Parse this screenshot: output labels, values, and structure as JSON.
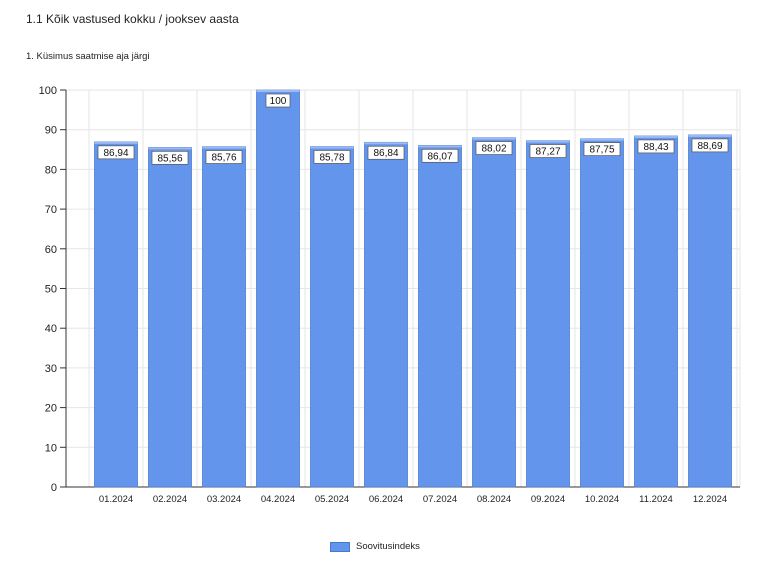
{
  "header": {
    "title": "1.1 Kõik vastused kokku / jooksev aasta",
    "subtitle": "1. Küsimus saatmise aja järgi"
  },
  "colors": {
    "bar": "#6495ED",
    "bar_edge": "#4a78c8",
    "grid": "#e6e6e6",
    "axis": "#333333"
  },
  "chart_data": {
    "type": "bar",
    "title": "",
    "xlabel": "",
    "ylabel": "",
    "categories": [
      "01.2024",
      "02.2024",
      "03.2024",
      "04.2024",
      "05.2024",
      "06.2024",
      "07.2024",
      "08.2024",
      "09.2024",
      "10.2024",
      "11.2024",
      "12.2024"
    ],
    "series": [
      {
        "name": "Soovitusindeks",
        "values": [
          86.94,
          85.56,
          85.76,
          100,
          85.78,
          86.84,
          86.07,
          88.02,
          87.27,
          87.75,
          88.43,
          88.69
        ],
        "labels": [
          "86,94",
          "85,56",
          "85,76",
          "100",
          "85,78",
          "86,84",
          "86,07",
          "88,02",
          "87,27",
          "87,75",
          "88,43",
          "88,69"
        ]
      }
    ],
    "ylim": [
      0,
      100
    ],
    "yticks": [
      0,
      10,
      20,
      30,
      40,
      50,
      60,
      70,
      80,
      90,
      100
    ],
    "grid": true,
    "legend_position": "bottom-center"
  }
}
